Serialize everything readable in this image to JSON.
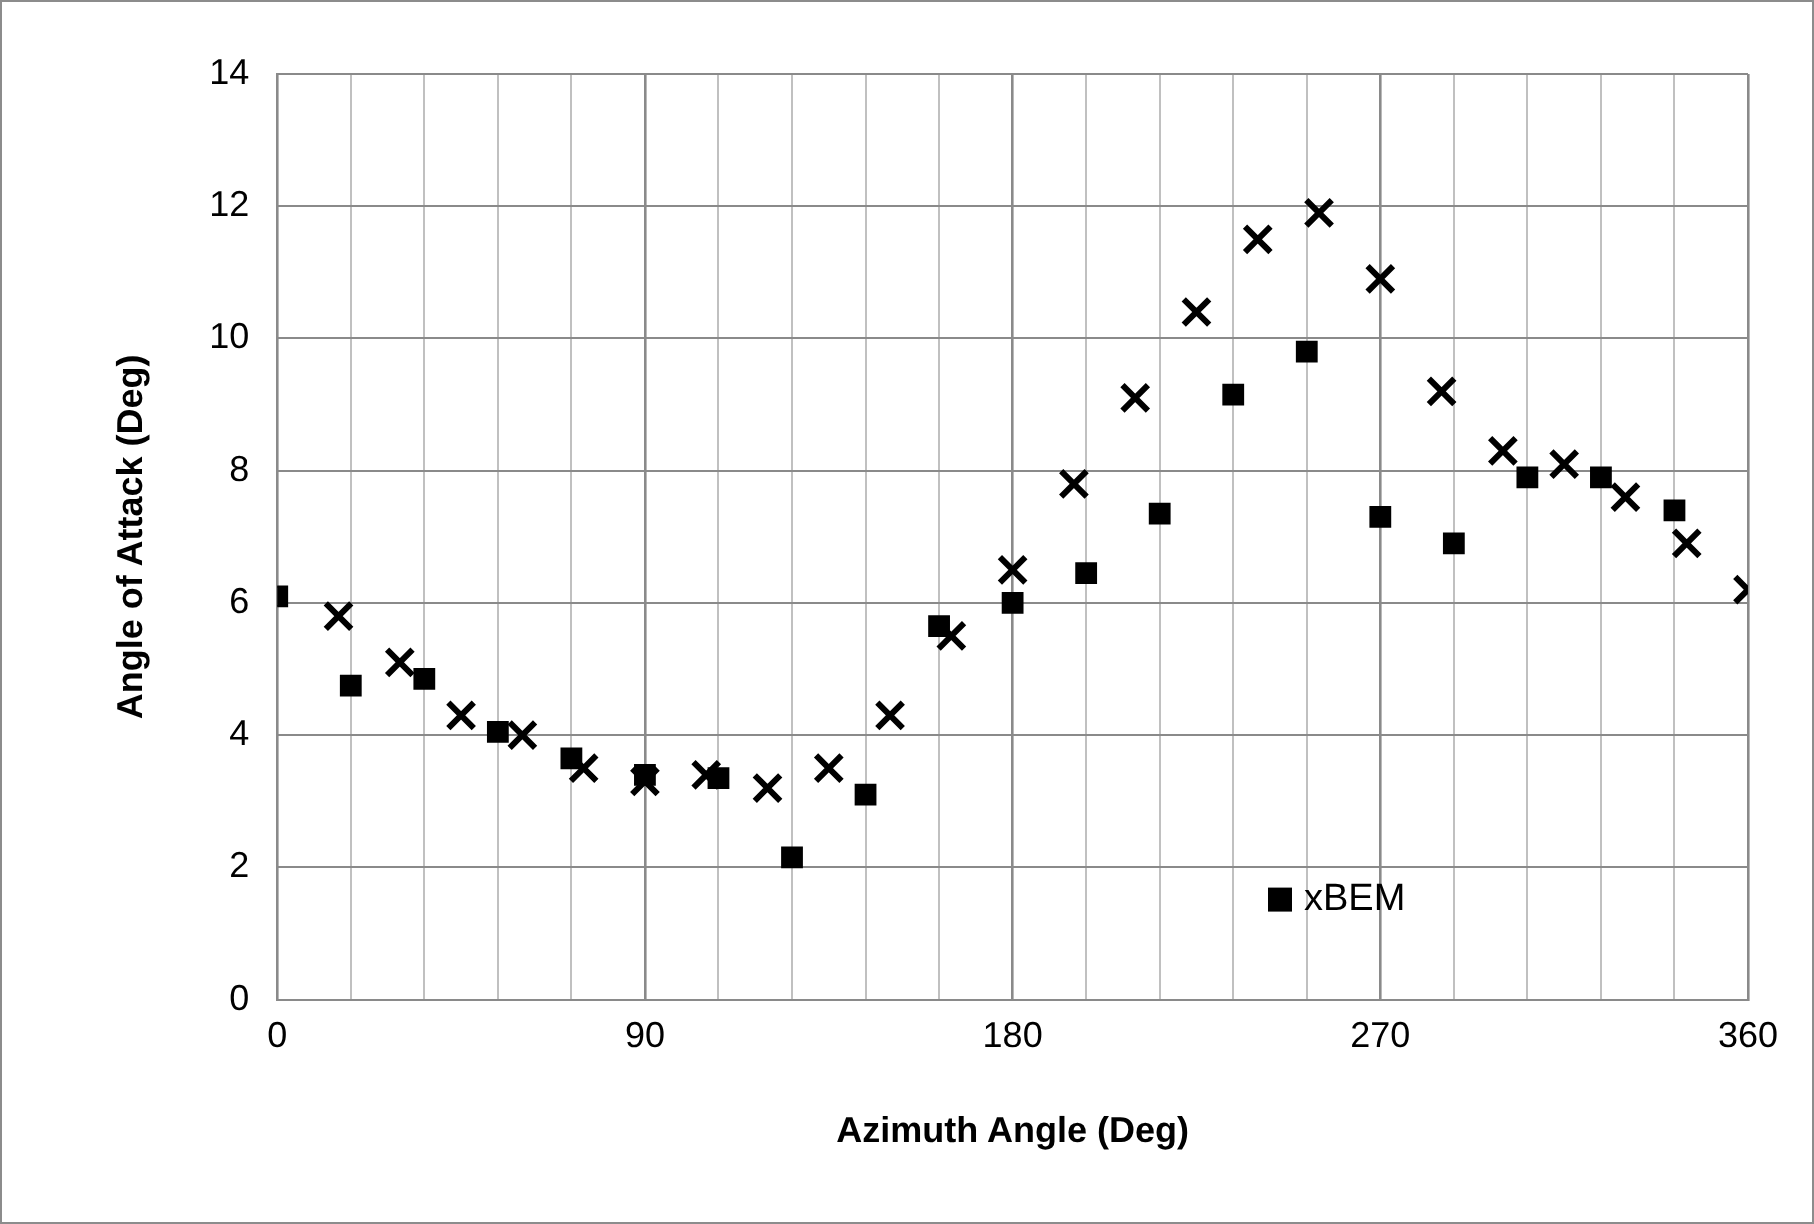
{
  "chart_data": {
    "type": "scatter",
    "xlabel": "Azimuth Angle (Deg)",
    "ylabel": "Angle of Attack (Deg)",
    "xlim": [
      0,
      360
    ],
    "xticks": [
      0,
      {
        "value": 18,
        "label": null
      },
      {
        "value": 36,
        "label": null
      },
      {
        "value": 54,
        "label": null
      },
      {
        "value": 72,
        "label": null
      },
      90,
      {
        "value": 108,
        "label": null
      },
      {
        "value": 126,
        "label": null
      },
      {
        "value": 144,
        "label": null
      },
      {
        "value": 162,
        "label": null
      },
      180,
      {
        "value": 198,
        "label": null
      },
      {
        "value": 216,
        "label": null
      },
      {
        "value": 234,
        "label": null
      },
      {
        "value": 252,
        "label": null
      },
      270,
      {
        "value": 288,
        "label": null
      },
      {
        "value": 306,
        "label": null
      },
      {
        "value": 324,
        "label": null
      },
      {
        "value": 342,
        "label": null
      },
      360
    ],
    "ylim": [
      0,
      14
    ],
    "yticks": [
      0,
      2,
      4,
      6,
      8,
      10,
      12,
      14
    ],
    "grid": true,
    "legend": "bottom right",
    "series": [
      {
        "color": "#000000",
        "marker": "cross",
        "x": [
          15,
          30,
          45,
          60,
          75,
          90,
          105,
          120,
          135,
          150,
          165,
          180,
          195,
          210,
          225,
          240,
          255,
          270,
          285,
          300,
          315,
          330,
          345,
          360
        ],
        "values": [
          5.8,
          5.1,
          4.3,
          4.0,
          3.5,
          3.3,
          3.4,
          3.2,
          3.5,
          4.3,
          5.5,
          6.5,
          7.8,
          9.1,
          10.4,
          11.5,
          11.9,
          10.9,
          9.2,
          8.3,
          8.1,
          7.6,
          6.9,
          6.2
        ]
      },
      {
        "name": "xBEM",
        "color": "#000000",
        "marker": "square",
        "x": [
          0,
          18,
          36,
          54,
          72,
          90,
          108,
          126,
          144,
          162,
          180,
          198,
          216,
          234,
          252,
          270,
          288,
          306,
          324,
          342
        ],
        "values": [
          6.1,
          4.75,
          4.85,
          4.05,
          3.65,
          3.4,
          3.35,
          2.15,
          3.1,
          5.65,
          6.0,
          6.45,
          7.35,
          9.15,
          9.8,
          7.3,
          6.9,
          7.9,
          7.9,
          7.4
        ]
      }
    ]
  }
}
